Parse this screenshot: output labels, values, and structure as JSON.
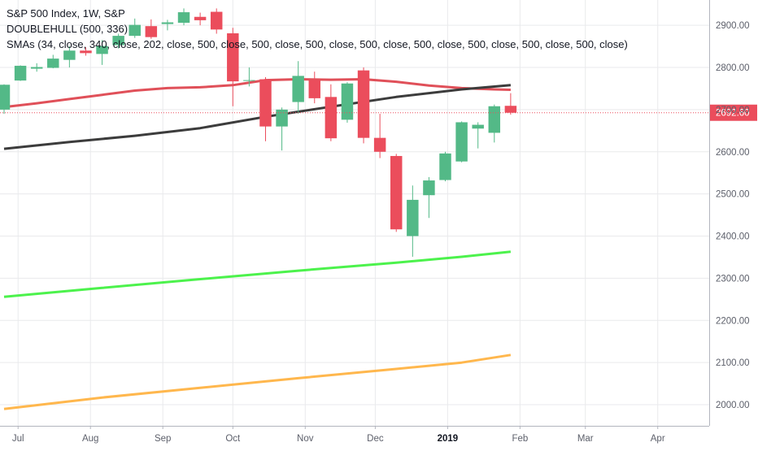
{
  "header": {
    "symbol_line": "S&P 500 Index, 1W, S&P",
    "indicator_line": "DOUBLEHULL (500, 336)",
    "sma_line": "SMAs (34, close, 340, close, 202, close, 500, close, 500, close, 500, close, 500, close, 500, close, 500, close, 500, close, 500, close)"
  },
  "colors": {
    "up": "#53b987",
    "down": "#eb4d5c",
    "sma_red": "#e05059",
    "sma_dark": "#3c3c3c",
    "sma_green": "#4cf24c",
    "sma_orange": "#ffb74d",
    "grid": "#e9eaec",
    "axis_text": "#5d606b",
    "price_tag": "#eb4d5c"
  },
  "chart_data": {
    "type": "candlestick",
    "title": "S&P 500 Index, 1W, S&P",
    "timeframe": "1W",
    "ylim": [
      1950,
      2960
    ],
    "y_ticks": [
      2000,
      2100,
      2200,
      2300,
      2400,
      2500,
      2600,
      2700,
      2800,
      2900
    ],
    "y_tick_labels": [
      "2000.00",
      "2100.00",
      "2200.00",
      "2300.00",
      "2400.00",
      "2500.00",
      "2600.00",
      "2700.00",
      "2800.00",
      "2900.00"
    ],
    "x_range": [
      "2018-06-25",
      "2019-04-22"
    ],
    "x_ticks": [
      {
        "date": "2018-07-01",
        "label": "Jul",
        "bold": false
      },
      {
        "date": "2018-08-01",
        "label": "Aug",
        "bold": false
      },
      {
        "date": "2018-09-01",
        "label": "Sep",
        "bold": false
      },
      {
        "date": "2018-10-01",
        "label": "Oct",
        "bold": false
      },
      {
        "date": "2018-11-01",
        "label": "Nov",
        "bold": false
      },
      {
        "date": "2018-12-01",
        "label": "Dec",
        "bold": false
      },
      {
        "date": "2019-01-01",
        "label": "2019",
        "bold": true
      },
      {
        "date": "2019-02-01",
        "label": "Feb",
        "bold": false
      },
      {
        "date": "2019-03-01",
        "label": "Mar",
        "bold": false
      },
      {
        "date": "2019-04-01",
        "label": "Apr",
        "bold": false
      }
    ],
    "last_price": 2692.6,
    "last_price_label": "2692.60",
    "candles": [
      {
        "date": "2018-06-25",
        "o": 2700,
        "h": 2760,
        "l": 2690,
        "c": 2759
      },
      {
        "date": "2018-07-02",
        "o": 2769,
        "h": 2805,
        "l": 2768,
        "c": 2804
      },
      {
        "date": "2018-07-09",
        "o": 2797,
        "h": 2810,
        "l": 2790,
        "c": 2801
      },
      {
        "date": "2018-07-16",
        "o": 2799,
        "h": 2830,
        "l": 2798,
        "c": 2821
      },
      {
        "date": "2018-07-23",
        "o": 2818,
        "h": 2851,
        "l": 2800,
        "c": 2840
      },
      {
        "date": "2018-07-30",
        "o": 2840,
        "h": 2848,
        "l": 2828,
        "c": 2834
      },
      {
        "date": "2018-08-06",
        "o": 2832,
        "h": 2865,
        "l": 2806,
        "c": 2851
      },
      {
        "date": "2018-08-13",
        "o": 2853,
        "h": 2880,
        "l": 2845,
        "c": 2875
      },
      {
        "date": "2018-08-20",
        "o": 2875,
        "h": 2916,
        "l": 2870,
        "c": 2901
      },
      {
        "date": "2018-08-27",
        "o": 2898,
        "h": 2914,
        "l": 2868,
        "c": 2872
      },
      {
        "date": "2018-09-03",
        "o": 2903,
        "h": 2913,
        "l": 2888,
        "c": 2907
      },
      {
        "date": "2018-09-10",
        "o": 2906,
        "h": 2940,
        "l": 2900,
        "c": 2931
      },
      {
        "date": "2018-09-17",
        "o": 2920,
        "h": 2930,
        "l": 2900,
        "c": 2912
      },
      {
        "date": "2018-09-24",
        "o": 2932,
        "h": 2940,
        "l": 2880,
        "c": 2890
      },
      {
        "date": "2018-10-01",
        "o": 2881,
        "h": 2894,
        "l": 2708,
        "c": 2767
      },
      {
        "date": "2018-10-08",
        "o": 2768,
        "h": 2800,
        "l": 2755,
        "c": 2770
      },
      {
        "date": "2018-10-15",
        "o": 2772,
        "h": 2777,
        "l": 2625,
        "c": 2660
      },
      {
        "date": "2018-10-22",
        "o": 2660,
        "h": 2705,
        "l": 2603,
        "c": 2700
      },
      {
        "date": "2018-10-29",
        "o": 2718,
        "h": 2815,
        "l": 2690,
        "c": 2780
      },
      {
        "date": "2018-11-05",
        "o": 2770,
        "h": 2790,
        "l": 2715,
        "c": 2727
      },
      {
        "date": "2018-11-12",
        "o": 2730,
        "h": 2760,
        "l": 2625,
        "c": 2632
      },
      {
        "date": "2018-11-19",
        "o": 2676,
        "h": 2765,
        "l": 2669,
        "c": 2762
      },
      {
        "date": "2018-11-26",
        "o": 2793,
        "h": 2800,
        "l": 2620,
        "c": 2633
      },
      {
        "date": "2018-12-03",
        "o": 2633,
        "h": 2690,
        "l": 2585,
        "c": 2600
      },
      {
        "date": "2018-12-10",
        "o": 2590,
        "h": 2595,
        "l": 2410,
        "c": 2416
      },
      {
        "date": "2018-12-17",
        "o": 2400,
        "h": 2520,
        "l": 2351,
        "c": 2486
      },
      {
        "date": "2018-12-24",
        "o": 2497,
        "h": 2540,
        "l": 2443,
        "c": 2532
      },
      {
        "date": "2018-12-31",
        "o": 2533,
        "h": 2600,
        "l": 2530,
        "c": 2596
      },
      {
        "date": "2019-01-07",
        "o": 2577,
        "h": 2672,
        "l": 2575,
        "c": 2670
      },
      {
        "date": "2019-01-14",
        "o": 2655,
        "h": 2670,
        "l": 2608,
        "c": 2664
      },
      {
        "date": "2019-01-21",
        "o": 2645,
        "h": 2712,
        "l": 2622,
        "c": 2708
      },
      {
        "date": "2019-01-28",
        "o": 2709,
        "h": 2739,
        "l": 2688,
        "c": 2692.6
      }
    ],
    "series": [
      {
        "color_key": "sma_red",
        "points": [
          {
            "date": "2018-06-25",
            "value": 2706
          },
          {
            "date": "2018-07-09",
            "value": 2715
          },
          {
            "date": "2018-07-23",
            "value": 2725
          },
          {
            "date": "2018-08-06",
            "value": 2735
          },
          {
            "date": "2018-08-20",
            "value": 2745
          },
          {
            "date": "2018-09-03",
            "value": 2751
          },
          {
            "date": "2018-09-17",
            "value": 2753
          },
          {
            "date": "2018-10-01",
            "value": 2758
          },
          {
            "date": "2018-10-15",
            "value": 2770
          },
          {
            "date": "2018-10-29",
            "value": 2772
          },
          {
            "date": "2018-11-12",
            "value": 2771
          },
          {
            "date": "2018-11-26",
            "value": 2772
          },
          {
            "date": "2018-12-10",
            "value": 2766
          },
          {
            "date": "2018-12-24",
            "value": 2757
          },
          {
            "date": "2019-01-07",
            "value": 2751
          },
          {
            "date": "2019-01-21",
            "value": 2748
          },
          {
            "date": "2019-01-28",
            "value": 2747
          }
        ]
      },
      {
        "color_key": "sma_dark",
        "points": [
          {
            "date": "2018-06-25",
            "value": 2607
          },
          {
            "date": "2018-07-23",
            "value": 2623
          },
          {
            "date": "2018-08-20",
            "value": 2638
          },
          {
            "date": "2018-09-17",
            "value": 2656
          },
          {
            "date": "2018-10-15",
            "value": 2683
          },
          {
            "date": "2018-11-12",
            "value": 2707
          },
          {
            "date": "2018-12-10",
            "value": 2730
          },
          {
            "date": "2019-01-07",
            "value": 2748
          },
          {
            "date": "2019-01-28",
            "value": 2758
          }
        ]
      },
      {
        "color_key": "sma_green",
        "points": [
          {
            "date": "2018-06-25",
            "value": 2256
          },
          {
            "date": "2018-08-06",
            "value": 2277
          },
          {
            "date": "2018-09-17",
            "value": 2298
          },
          {
            "date": "2018-10-29",
            "value": 2318
          },
          {
            "date": "2018-12-10",
            "value": 2337
          },
          {
            "date": "2019-01-07",
            "value": 2351
          },
          {
            "date": "2019-01-28",
            "value": 2363
          }
        ]
      },
      {
        "color_key": "sma_orange",
        "points": [
          {
            "date": "2018-06-25",
            "value": 1990
          },
          {
            "date": "2018-08-06",
            "value": 2017
          },
          {
            "date": "2018-09-17",
            "value": 2040
          },
          {
            "date": "2018-10-29",
            "value": 2063
          },
          {
            "date": "2018-12-10",
            "value": 2085
          },
          {
            "date": "2019-01-07",
            "value": 2100
          },
          {
            "date": "2019-01-28",
            "value": 2118
          }
        ]
      }
    ]
  }
}
